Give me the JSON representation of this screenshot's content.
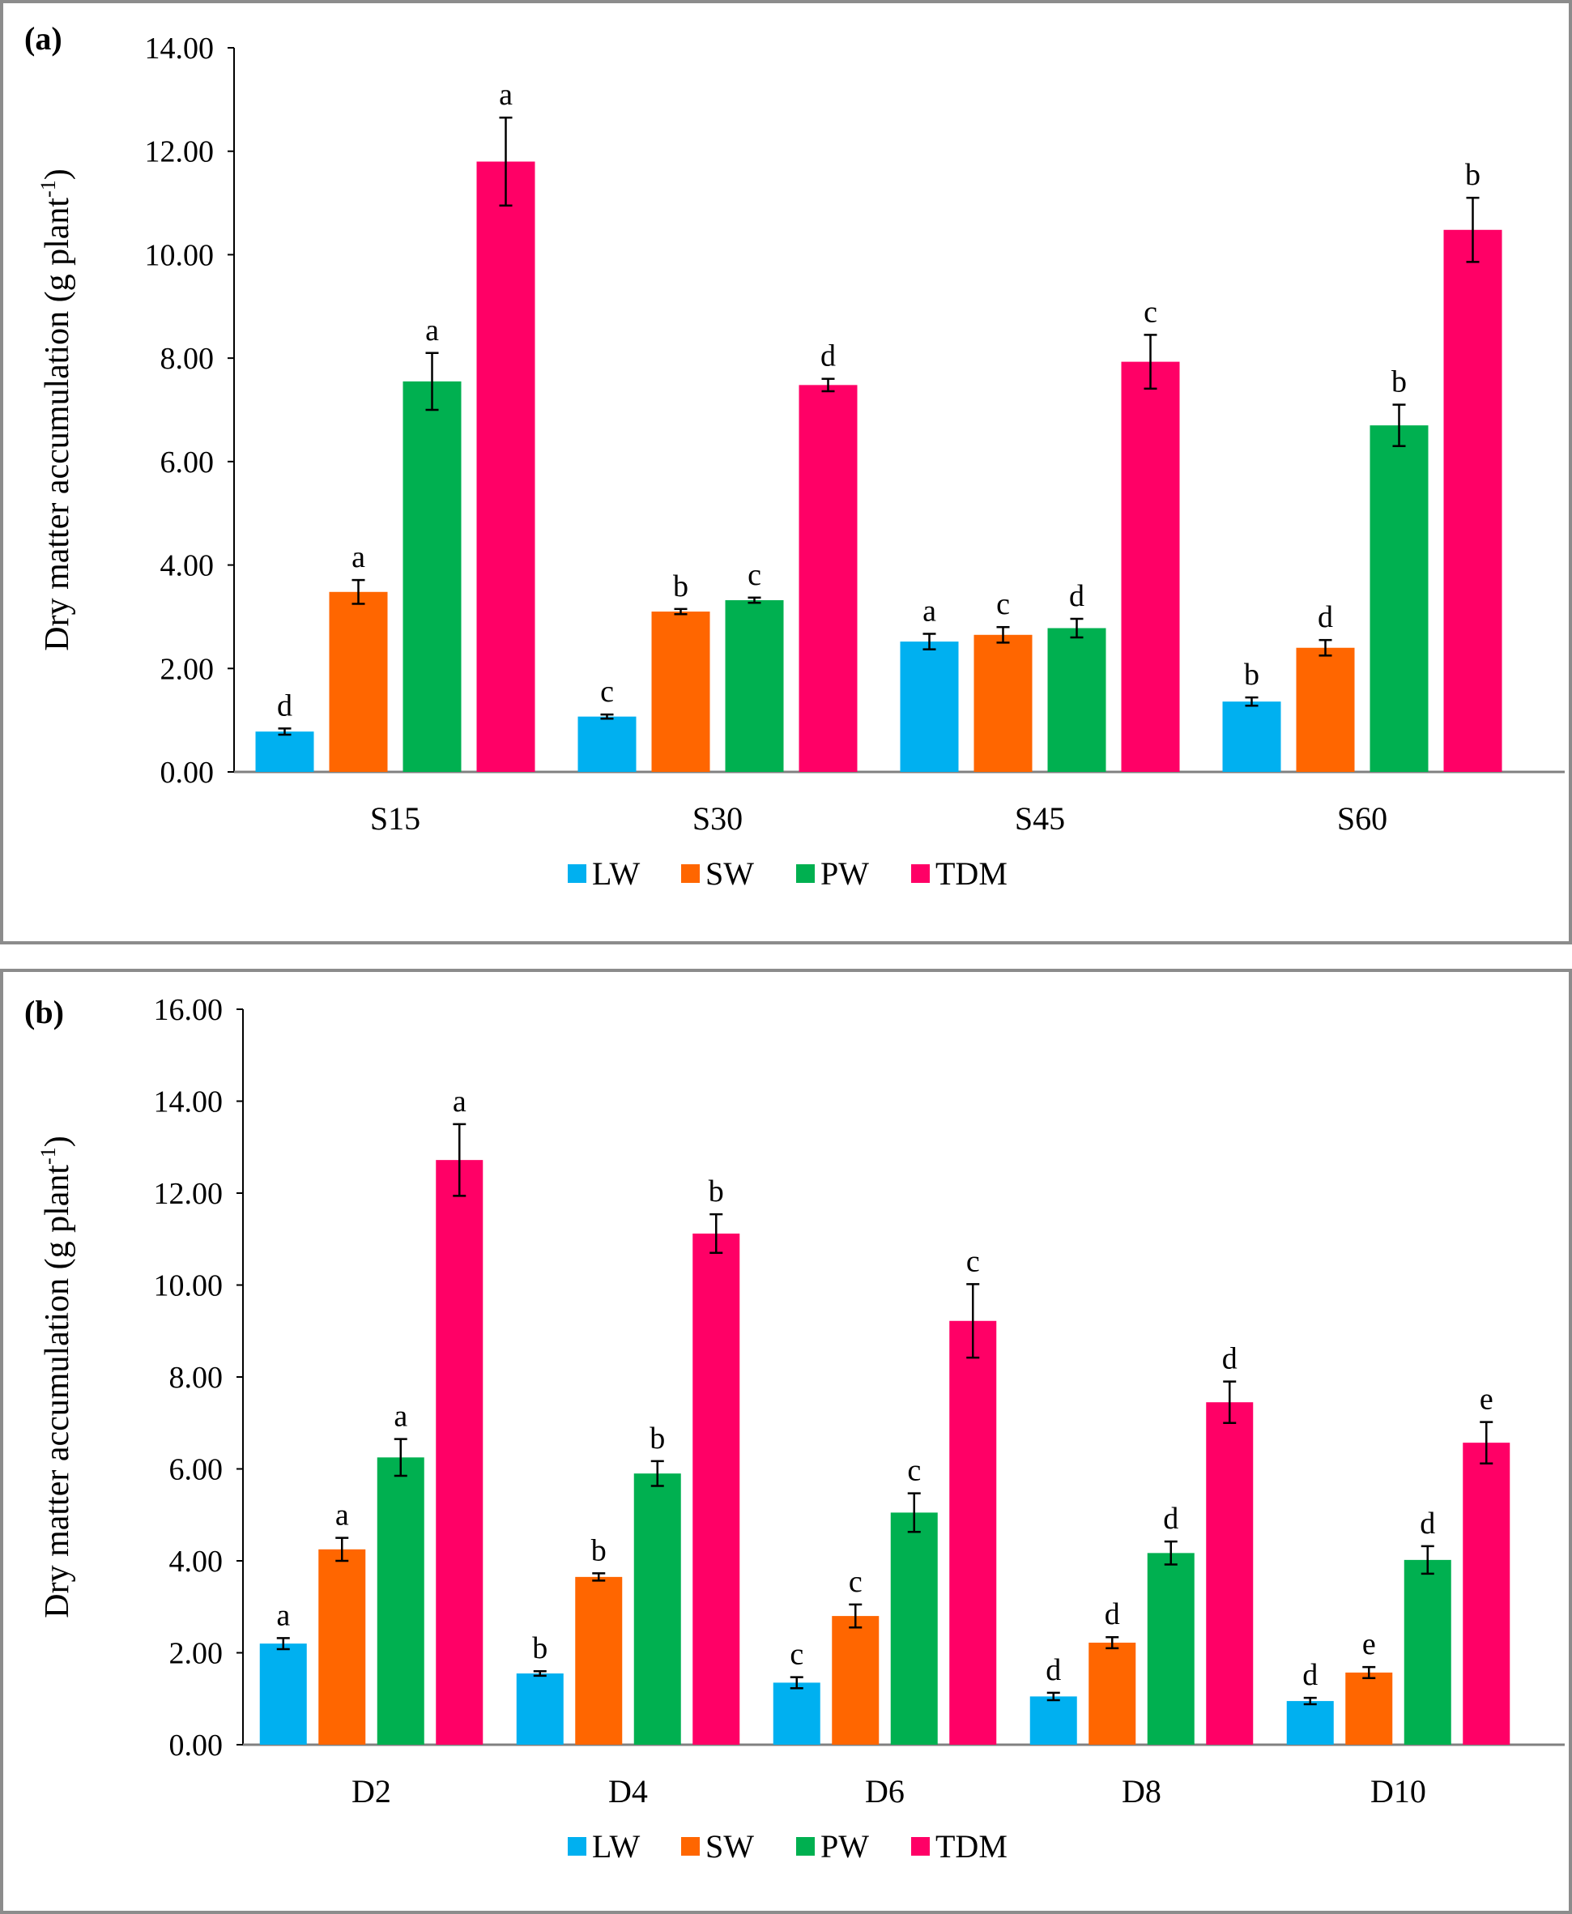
{
  "colors": {
    "LW": "#00b0f0",
    "SW": "#ff6600",
    "PW": "#00b050",
    "TDM": "#ff0066"
  },
  "chart_data": [
    {
      "type": "bar",
      "panel_label": "(a)",
      "ylabel": "Dry matter accumulation (g plant",
      "ylabel_sup": "-1",
      "ylabel_close": ")",
      "ylim": [
        0,
        14
      ],
      "yticks": [
        "0.00",
        "2.00",
        "4.00",
        "6.00",
        "8.00",
        "10.00",
        "12.00",
        "14.00"
      ],
      "categories": [
        "S15",
        "S30",
        "S45",
        "S60"
      ],
      "legend": [
        "LW",
        "SW",
        "PW",
        "TDM"
      ],
      "legend_position": "bottom",
      "series": [
        {
          "name": "LW",
          "values": [
            0.78,
            1.07,
            2.52,
            1.36
          ],
          "errors": [
            0.06,
            0.04,
            0.15,
            0.08
          ],
          "labels": [
            "d",
            "c",
            "a",
            "b"
          ]
        },
        {
          "name": "SW",
          "values": [
            3.48,
            3.1,
            2.65,
            2.4
          ],
          "errors": [
            0.23,
            0.05,
            0.15,
            0.15
          ],
          "labels": [
            "a",
            "b",
            "c",
            "d"
          ]
        },
        {
          "name": "PW",
          "values": [
            7.55,
            3.32,
            2.78,
            6.7
          ],
          "errors": [
            0.55,
            0.05,
            0.18,
            0.4
          ],
          "labels": [
            "a",
            "c",
            "d",
            "b"
          ]
        },
        {
          "name": "TDM",
          "values": [
            11.8,
            7.48,
            7.93,
            10.48
          ],
          "errors": [
            0.85,
            0.12,
            0.52,
            0.62
          ],
          "labels": [
            "a",
            "d",
            "c",
            "b"
          ]
        }
      ]
    },
    {
      "type": "bar",
      "panel_label": "(b)",
      "ylabel": "Dry matter accumulation (g plant",
      "ylabel_sup": "-1",
      "ylabel_close": ")",
      "ylim": [
        0,
        16
      ],
      "yticks": [
        "0.00",
        "2.00",
        "4.00",
        "6.00",
        "8.00",
        "10.00",
        "12.00",
        "14.00",
        "16.00"
      ],
      "categories": [
        "D2",
        "D4",
        "D6",
        "D8",
        "D10"
      ],
      "legend": [
        "LW",
        "SW",
        "PW",
        "TDM"
      ],
      "legend_position": "bottom",
      "series": [
        {
          "name": "LW",
          "values": [
            2.2,
            1.55,
            1.35,
            1.05,
            0.95
          ],
          "errors": [
            0.12,
            0.05,
            0.12,
            0.08,
            0.07
          ],
          "labels": [
            "a",
            "b",
            "c",
            "d",
            "d"
          ]
        },
        {
          "name": "SW",
          "values": [
            4.25,
            3.65,
            2.8,
            2.22,
            1.57
          ],
          "errors": [
            0.25,
            0.08,
            0.25,
            0.12,
            0.12
          ],
          "labels": [
            "a",
            "b",
            "c",
            "d",
            "e"
          ]
        },
        {
          "name": "PW",
          "values": [
            6.25,
            5.9,
            5.05,
            4.17,
            4.02
          ],
          "errors": [
            0.4,
            0.27,
            0.42,
            0.25,
            0.3
          ],
          "labels": [
            "a",
            "b",
            "c",
            "d",
            "d"
          ]
        },
        {
          "name": "TDM",
          "values": [
            12.72,
            11.12,
            9.22,
            7.45,
            6.57
          ],
          "errors": [
            0.78,
            0.42,
            0.8,
            0.45,
            0.45
          ],
          "labels": [
            "a",
            "b",
            "c",
            "d",
            "e"
          ]
        }
      ]
    }
  ]
}
